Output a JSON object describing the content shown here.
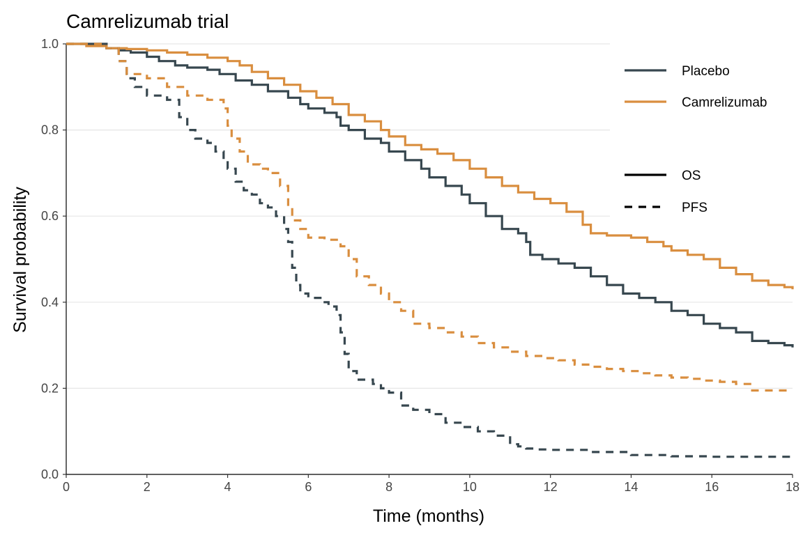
{
  "chart_data": {
    "type": "line",
    "title": "Camrelizumab trial",
    "xlabel": "Time (months)",
    "ylabel": "Survival probability",
    "xlim": [
      0,
      18
    ],
    "ylim": [
      0,
      1
    ],
    "x_ticks": [
      0,
      2,
      4,
      6,
      8,
      10,
      12,
      14,
      16,
      18
    ],
    "y_ticks": [
      0.0,
      0.2,
      0.4,
      0.6,
      0.8,
      1.0
    ],
    "y_tick_labels": [
      "0.0",
      "0.2",
      "0.4",
      "0.6",
      "0.8",
      "1.0"
    ],
    "grid": "horizontal",
    "legend_position": "top-right",
    "colors": {
      "Placebo": "#37474f",
      "Camrelizumab": "#d98e3f"
    },
    "legend": {
      "arms": [
        {
          "name": "Placebo",
          "color": "#37474f"
        },
        {
          "name": "Camrelizumab",
          "color": "#d98e3f"
        }
      ],
      "endpoints": [
        {
          "name": "OS",
          "style": "solid"
        },
        {
          "name": "PFS",
          "style": "dashed"
        }
      ]
    },
    "series": [
      {
        "name": "Placebo OS",
        "arm": "Placebo",
        "endpoint": "OS",
        "x": [
          0,
          0.5,
          1.0,
          1.3,
          1.6,
          2.0,
          2.3,
          2.7,
          3.0,
          3.5,
          3.8,
          4.2,
          4.6,
          5.0,
          5.5,
          5.8,
          6.0,
          6.4,
          6.7,
          6.8,
          7.0,
          7.4,
          7.8,
          8.0,
          8.4,
          8.8,
          9.0,
          9.4,
          9.8,
          10.0,
          10.4,
          10.8,
          11.2,
          11.4,
          11.5,
          11.8,
          12.2,
          12.6,
          13.0,
          13.4,
          13.8,
          14.2,
          14.6,
          15.0,
          15.4,
          15.8,
          16.2,
          16.6,
          17.0,
          17.4,
          17.8,
          18.0
        ],
        "y": [
          1.0,
          1.0,
          0.99,
          0.985,
          0.98,
          0.97,
          0.96,
          0.95,
          0.945,
          0.94,
          0.93,
          0.915,
          0.905,
          0.89,
          0.875,
          0.86,
          0.85,
          0.84,
          0.83,
          0.81,
          0.8,
          0.78,
          0.77,
          0.75,
          0.73,
          0.71,
          0.69,
          0.67,
          0.65,
          0.63,
          0.6,
          0.57,
          0.56,
          0.54,
          0.51,
          0.5,
          0.49,
          0.48,
          0.46,
          0.44,
          0.42,
          0.41,
          0.4,
          0.38,
          0.37,
          0.35,
          0.34,
          0.33,
          0.31,
          0.305,
          0.3,
          0.295
        ]
      },
      {
        "name": "Camrelizumab OS",
        "arm": "Camrelizumab",
        "endpoint": "OS",
        "x": [
          0,
          0.5,
          1.0,
          1.5,
          2.0,
          2.5,
          3.0,
          3.5,
          4.0,
          4.3,
          4.6,
          5.0,
          5.4,
          5.8,
          6.2,
          6.6,
          7.0,
          7.4,
          7.8,
          8.0,
          8.4,
          8.8,
          9.2,
          9.6,
          10.0,
          10.4,
          10.8,
          11.2,
          11.6,
          12.0,
          12.4,
          12.8,
          13.0,
          13.4,
          13.8,
          14.0,
          14.4,
          14.8,
          15.0,
          15.4,
          15.8,
          16.2,
          16.6,
          17.0,
          17.4,
          17.8,
          18.0
        ],
        "y": [
          1.0,
          0.995,
          0.99,
          0.988,
          0.985,
          0.98,
          0.975,
          0.968,
          0.96,
          0.95,
          0.935,
          0.92,
          0.905,
          0.89,
          0.875,
          0.86,
          0.835,
          0.82,
          0.8,
          0.785,
          0.765,
          0.755,
          0.745,
          0.73,
          0.71,
          0.69,
          0.67,
          0.655,
          0.64,
          0.63,
          0.61,
          0.58,
          0.56,
          0.555,
          0.555,
          0.55,
          0.54,
          0.53,
          0.52,
          0.51,
          0.5,
          0.48,
          0.465,
          0.45,
          0.44,
          0.435,
          0.43
        ]
      },
      {
        "name": "Placebo PFS",
        "arm": "Placebo",
        "endpoint": "PFS",
        "x": [
          0,
          0.5,
          1.0,
          1.3,
          1.5,
          1.7,
          2.0,
          2.5,
          2.8,
          3.0,
          3.2,
          3.5,
          3.7,
          3.9,
          4.0,
          4.2,
          4.4,
          4.6,
          4.8,
          5.0,
          5.2,
          5.4,
          5.5,
          5.6,
          5.7,
          5.8,
          6.0,
          6.3,
          6.5,
          6.7,
          6.8,
          6.9,
          7.0,
          7.2,
          7.6,
          7.8,
          8.0,
          8.3,
          8.6,
          9.0,
          9.4,
          9.8,
          10.2,
          10.6,
          11.0,
          11.2,
          11.4,
          11.6,
          12.0,
          13.0,
          14.0,
          15.0,
          16.0,
          17.0,
          18.0
        ],
        "y": [
          1.0,
          1.0,
          0.99,
          0.96,
          0.92,
          0.9,
          0.88,
          0.87,
          0.83,
          0.8,
          0.78,
          0.77,
          0.75,
          0.73,
          0.71,
          0.68,
          0.66,
          0.65,
          0.63,
          0.62,
          0.6,
          0.57,
          0.54,
          0.48,
          0.44,
          0.42,
          0.41,
          0.4,
          0.39,
          0.37,
          0.33,
          0.28,
          0.24,
          0.22,
          0.21,
          0.2,
          0.19,
          0.16,
          0.15,
          0.14,
          0.12,
          0.11,
          0.1,
          0.09,
          0.07,
          0.065,
          0.06,
          0.058,
          0.057,
          0.052,
          0.045,
          0.042,
          0.041,
          0.041,
          0.041
        ]
      },
      {
        "name": "Camrelizumab PFS",
        "arm": "Camrelizumab",
        "endpoint": "PFS",
        "x": [
          0,
          0.5,
          1.0,
          1.3,
          1.5,
          2.0,
          2.5,
          3.0,
          3.5,
          3.9,
          4.0,
          4.1,
          4.3,
          4.5,
          4.8,
          5.0,
          5.3,
          5.5,
          5.6,
          5.8,
          6.0,
          6.4,
          6.8,
          7.0,
          7.2,
          7.5,
          7.8,
          8.0,
          8.3,
          8.6,
          9.0,
          9.4,
          9.8,
          10.2,
          10.6,
          11.0,
          11.4,
          11.8,
          12.2,
          12.6,
          13.0,
          13.4,
          13.8,
          14.2,
          14.6,
          15.0,
          15.4,
          15.8,
          16.2,
          16.6,
          17.0,
          18.0
        ],
        "y": [
          1.0,
          1.0,
          0.99,
          0.96,
          0.93,
          0.92,
          0.9,
          0.88,
          0.87,
          0.85,
          0.81,
          0.78,
          0.75,
          0.72,
          0.71,
          0.7,
          0.67,
          0.62,
          0.59,
          0.57,
          0.55,
          0.545,
          0.53,
          0.5,
          0.46,
          0.44,
          0.42,
          0.4,
          0.38,
          0.35,
          0.34,
          0.33,
          0.32,
          0.305,
          0.295,
          0.285,
          0.275,
          0.27,
          0.265,
          0.255,
          0.25,
          0.245,
          0.24,
          0.235,
          0.23,
          0.225,
          0.222,
          0.218,
          0.215,
          0.21,
          0.195,
          0.195
        ]
      }
    ]
  }
}
